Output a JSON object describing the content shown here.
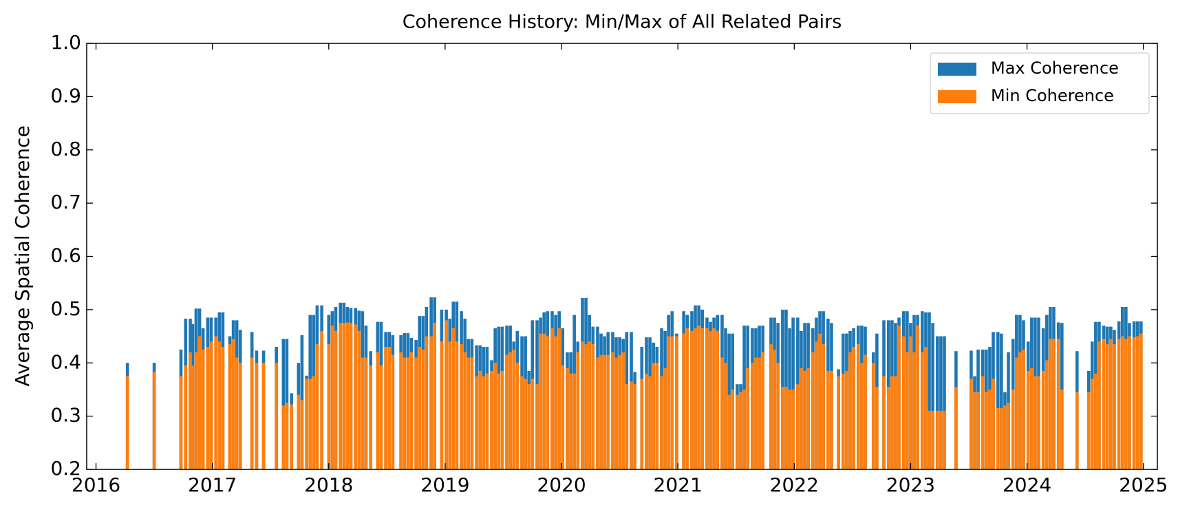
{
  "chart_data": {
    "type": "bar",
    "title": "Coherence History: Min/Max of All Related Pairs",
    "y_label": "Average Spatial Coherence",
    "legend": "upper right",
    "xlim": [
      2015.92,
      2025.12
    ],
    "xticks": [
      2016,
      2017,
      2018,
      2019,
      2020,
      2021,
      2022,
      2023,
      2024,
      2025
    ],
    "ylim": [
      0.2,
      1.0
    ],
    "yticks": [
      0.2,
      0.3,
      0.4,
      0.5,
      0.6,
      0.7,
      0.8,
      0.9,
      {
        "value": 1,
        "label": "1.0"
      }
    ],
    "x": [
      2016.27,
      2016.5,
      2016.73,
      2016.77,
      2016.81,
      2016.83,
      2016.86,
      2016.89,
      2016.92,
      2016.96,
      2016.99,
      2017.03,
      2017.06,
      2017.09,
      2017.15,
      2017.18,
      2017.21,
      2017.24,
      2017.34,
      2017.38,
      2017.44,
      2017.55,
      2017.61,
      2017.64,
      2017.68,
      2017.74,
      2017.77,
      2017.81,
      2017.84,
      2017.87,
      2017.9,
      2017.94,
      2018.0,
      2018.03,
      2018.06,
      2018.1,
      2018.13,
      2018.16,
      2018.19,
      2018.23,
      2018.26,
      2018.29,
      2018.32,
      2018.36,
      2018.42,
      2018.45,
      2018.49,
      2018.52,
      2018.55,
      2018.62,
      2018.65,
      2018.68,
      2018.71,
      2018.75,
      2018.78,
      2018.81,
      2018.84,
      2018.88,
      2018.91,
      2018.97,
      2019.01,
      2019.04,
      2019.07,
      2019.1,
      2019.14,
      2019.17,
      2019.2,
      2019.23,
      2019.27,
      2019.3,
      2019.33,
      2019.36,
      2019.4,
      2019.43,
      2019.46,
      2019.49,
      2019.53,
      2019.56,
      2019.59,
      2019.62,
      2019.66,
      2019.69,
      2019.72,
      2019.75,
      2019.79,
      2019.82,
      2019.85,
      2019.88,
      2019.92,
      2019.95,
      2019.98,
      2020.01,
      2020.05,
      2020.08,
      2020.11,
      2020.14,
      2020.18,
      2020.21,
      2020.24,
      2020.27,
      2020.31,
      2020.34,
      2020.37,
      2020.4,
      2020.44,
      2020.47,
      2020.5,
      2020.53,
      2020.56,
      2020.6,
      2020.63,
      2020.69,
      2020.73,
      2020.76,
      2020.79,
      2020.82,
      2020.86,
      2020.89,
      2020.92,
      2020.95,
      2020.99,
      2021.05,
      2021.08,
      2021.12,
      2021.15,
      2021.18,
      2021.21,
      2021.25,
      2021.28,
      2021.31,
      2021.34,
      2021.38,
      2021.41,
      2021.44,
      2021.47,
      2021.51,
      2021.54,
      2021.57,
      2021.6,
      2021.64,
      2021.67,
      2021.7,
      2021.73,
      2021.8,
      2021.83,
      2021.86,
      2021.9,
      2021.93,
      2021.96,
      2021.99,
      2022.03,
      2022.06,
      2022.09,
      2022.12,
      2022.16,
      2022.19,
      2022.22,
      2022.25,
      2022.29,
      2022.32,
      2022.38,
      2022.42,
      2022.45,
      2022.48,
      2022.51,
      2022.55,
      2022.58,
      2022.61,
      2022.68,
      2022.71,
      2022.77,
      2022.81,
      2022.84,
      2022.87,
      2022.9,
      2022.94,
      2022.97,
      2023.0,
      2023.03,
      2023.06,
      2023.1,
      2023.13,
      2023.16,
      2023.19,
      2023.23,
      2023.26,
      2023.29,
      2023.39,
      2023.52,
      2023.55,
      2023.58,
      2023.62,
      2023.65,
      2023.68,
      2023.71,
      2023.75,
      2023.78,
      2023.81,
      2023.84,
      2023.88,
      2023.91,
      2023.94,
      2023.97,
      2024.01,
      2024.04,
      2024.07,
      2024.1,
      2024.14,
      2024.17,
      2024.2,
      2024.23,
      2024.27,
      2024.3,
      2024.43,
      2024.53,
      2024.56,
      2024.59,
      2024.62,
      2024.66,
      2024.69,
      2024.72,
      2024.75,
      2024.79,
      2024.82,
      2024.85,
      2024.88,
      2024.92,
      2024.95,
      2024.98
    ],
    "series": [
      {
        "name": "Max Coherence",
        "color": "#1f77b4",
        "values": [
          0.4,
          0.4,
          0.425,
          0.483,
          0.483,
          0.473,
          0.502,
          0.502,
          0.465,
          0.485,
          0.485,
          0.485,
          0.495,
          0.495,
          0.45,
          0.48,
          0.48,
          0.462,
          0.458,
          0.423,
          0.423,
          0.43,
          0.445,
          0.445,
          0.343,
          0.4,
          0.452,
          0.376,
          0.49,
          0.49,
          0.508,
          0.508,
          0.49,
          0.497,
          0.505,
          0.513,
          0.513,
          0.505,
          0.503,
          0.503,
          0.498,
          0.497,
          0.47,
          0.422,
          0.477,
          0.477,
          0.458,
          0.458,
          0.452,
          0.452,
          0.456,
          0.456,
          0.447,
          0.443,
          0.488,
          0.488,
          0.505,
          0.523,
          0.523,
          0.5,
          0.5,
          0.483,
          0.515,
          0.515,
          0.497,
          0.483,
          0.445,
          0.445,
          0.433,
          0.433,
          0.43,
          0.43,
          0.405,
          0.465,
          0.468,
          0.468,
          0.47,
          0.47,
          0.44,
          0.46,
          0.45,
          0.45,
          0.385,
          0.48,
          0.48,
          0.485,
          0.495,
          0.497,
          0.497,
          0.49,
          0.497,
          0.465,
          0.42,
          0.42,
          0.49,
          0.44,
          0.522,
          0.522,
          0.49,
          0.468,
          0.468,
          0.455,
          0.45,
          0.458,
          0.458,
          0.448,
          0.448,
          0.445,
          0.458,
          0.458,
          0.383,
          0.43,
          0.448,
          0.448,
          0.438,
          0.43,
          0.465,
          0.46,
          0.49,
          0.497,
          0.455,
          0.497,
          0.49,
          0.497,
          0.508,
          0.508,
          0.5,
          0.485,
          0.477,
          0.485,
          0.49,
          0.49,
          0.465,
          0.455,
          0.455,
          0.36,
          0.36,
          0.47,
          0.47,
          0.465,
          0.465,
          0.47,
          0.47,
          0.485,
          0.485,
          0.475,
          0.5,
          0.5,
          0.465,
          0.485,
          0.485,
          0.46,
          0.475,
          0.475,
          0.465,
          0.485,
          0.497,
          0.497,
          0.483,
          0.475,
          0.388,
          0.455,
          0.455,
          0.46,
          0.465,
          0.47,
          0.47,
          0.468,
          0.42,
          0.455,
          0.48,
          0.48,
          0.48,
          0.475,
          0.485,
          0.497,
          0.497,
          0.475,
          0.49,
          0.49,
          0.497,
          0.495,
          0.495,
          0.475,
          0.45,
          0.45,
          0.45,
          0.422,
          0.423,
          0.375,
          0.425,
          0.425,
          0.425,
          0.43,
          0.458,
          0.458,
          0.455,
          0.345,
          0.42,
          0.445,
          0.49,
          0.49,
          0.48,
          0.44,
          0.485,
          0.485,
          0.485,
          0.465,
          0.49,
          0.505,
          0.505,
          0.476,
          0.475,
          0.422,
          0.385,
          0.44,
          0.477,
          0.477,
          0.47,
          0.468,
          0.468,
          0.462,
          0.478,
          0.505,
          0.505,
          0.475,
          0.478,
          0.478,
          0.478
        ]
      },
      {
        "name": "Min Coherence",
        "color": "#ff7f0e",
        "values": [
          0.375,
          0.383,
          0.375,
          0.395,
          0.42,
          0.395,
          0.42,
          0.45,
          0.425,
          0.43,
          0.44,
          0.45,
          0.44,
          0.43,
          0.435,
          0.445,
          0.41,
          0.4,
          0.41,
          0.4,
          0.4,
          0.4,
          0.32,
          0.325,
          0.322,
          0.34,
          0.33,
          0.37,
          0.37,
          0.375,
          0.435,
          0.46,
          0.435,
          0.47,
          0.46,
          0.475,
          0.475,
          0.476,
          0.475,
          0.472,
          0.46,
          0.41,
          0.41,
          0.395,
          0.42,
          0.395,
          0.43,
          0.43,
          0.415,
          0.42,
          0.41,
          0.41,
          0.42,
          0.41,
          0.43,
          0.425,
          0.45,
          0.45,
          0.475,
          0.44,
          0.48,
          0.44,
          0.465,
          0.44,
          0.435,
          0.42,
          0.41,
          0.41,
          0.375,
          0.385,
          0.375,
          0.38,
          0.385,
          0.4,
          0.38,
          0.385,
          0.415,
          0.42,
          0.425,
          0.4,
          0.375,
          0.37,
          0.36,
          0.37,
          0.36,
          0.455,
          0.455,
          0.45,
          0.465,
          0.45,
          0.465,
          0.395,
          0.39,
          0.38,
          0.38,
          0.42,
          0.44,
          0.435,
          0.44,
          0.435,
          0.41,
          0.415,
          0.415,
          0.415,
          0.42,
          0.41,
          0.415,
          0.42,
          0.36,
          0.365,
          0.36,
          0.37,
          0.38,
          0.375,
          0.4,
          0.4,
          0.375,
          0.39,
          0.45,
          0.45,
          0.45,
          0.455,
          0.465,
          0.46,
          0.465,
          0.47,
          0.465,
          0.465,
          0.46,
          0.465,
          0.46,
          0.41,
          0.4,
          0.34,
          0.35,
          0.34,
          0.345,
          0.35,
          0.39,
          0.4,
          0.41,
          0.41,
          0.42,
          0.435,
          0.425,
          0.4,
          0.355,
          0.355,
          0.35,
          0.35,
          0.36,
          0.39,
          0.385,
          0.39,
          0.42,
          0.44,
          0.455,
          0.435,
          0.385,
          0.385,
          0.375,
          0.38,
          0.385,
          0.42,
          0.43,
          0.435,
          0.4,
          0.415,
          0.4,
          0.355,
          0.375,
          0.355,
          0.375,
          0.375,
          0.47,
          0.45,
          0.42,
          0.45,
          0.42,
          0.47,
          0.42,
          0.43,
          0.31,
          0.31,
          0.31,
          0.31,
          0.31,
          0.355,
          0.37,
          0.345,
          0.345,
          0.375,
          0.345,
          0.35,
          0.37,
          0.315,
          0.315,
          0.32,
          0.325,
          0.35,
          0.41,
          0.42,
          0.425,
          0.385,
          0.39,
          0.375,
          0.375,
          0.385,
          0.405,
          0.445,
          0.445,
          0.445,
          0.35,
          0.345,
          0.345,
          0.37,
          0.38,
          0.44,
          0.445,
          0.435,
          0.445,
          0.435,
          0.445,
          0.45,
          0.445,
          0.45,
          0.448,
          0.45,
          0.455
        ]
      }
    ]
  }
}
